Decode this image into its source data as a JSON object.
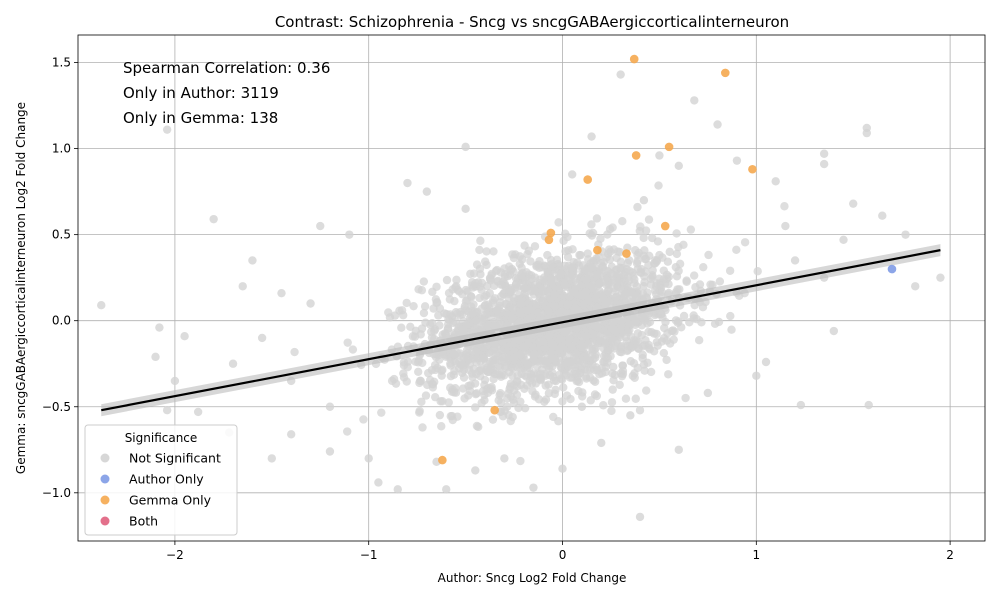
{
  "chart_data": {
    "type": "scatter",
    "title": "Contrast: Schizophrenia - Sncg vs sncgGABAergiccorticalinterneuron",
    "xlabel": "Author: Sncg Log2 Fold Change",
    "ylabel": "Gemma: sncgGABAergiccorticalinterneuron Log2 Fold Change",
    "xlim": [
      -2.5,
      2.18
    ],
    "ylim": [
      -1.28,
      1.66
    ],
    "xticks": [
      -2,
      -1,
      0,
      1,
      2
    ],
    "xtick_labels": [
      "−2",
      "−1",
      "0",
      "1",
      "2"
    ],
    "yticks": [
      -1.0,
      -0.5,
      0.0,
      0.5,
      1.0,
      1.5
    ],
    "ytick_labels": [
      "−1.0",
      "−0.5",
      "0.0",
      "0.5",
      "1.0",
      "1.5"
    ],
    "grid": true,
    "annotations": [
      "Spearman Correlation: 0.36",
      "Only in Author: 3119",
      "Only in Gemma: 138"
    ],
    "regression_line": {
      "x": [
        -2.38,
        1.95
      ],
      "y": [
        -0.52,
        0.41
      ],
      "color": "#000000"
    },
    "legend": {
      "title": "Significance",
      "placement": "lower-left",
      "entries": [
        {
          "label": "Not Significant",
          "color": "#d3d3d3"
        },
        {
          "label": "Author Only",
          "color": "#7f9be6"
        },
        {
          "label": "Gemma Only",
          "color": "#f5a94f"
        },
        {
          "label": "Both",
          "color": "#e0607e"
        }
      ]
    },
    "series": [
      {
        "name": "Not Significant",
        "color": "#d3d3d3",
        "cloud": {
          "count": 2400,
          "x_center": -0.05,
          "x_sd": 0.33,
          "y_center": 0.0,
          "y_sd": 0.2,
          "slope": 0.2
        },
        "points": [
          [
            -2.38,
            0.09
          ],
          [
            -2.04,
            1.11
          ],
          [
            -1.8,
            0.59
          ],
          [
            -2.08,
            -0.04
          ],
          [
            -2.1,
            -0.21
          ],
          [
            -1.95,
            -0.09
          ],
          [
            -2.0,
            -0.35
          ],
          [
            -2.04,
            -0.52
          ],
          [
            -1.88,
            -0.53
          ],
          [
            -1.72,
            -0.65
          ],
          [
            -1.5,
            -0.8
          ],
          [
            -1.4,
            -0.66
          ],
          [
            -1.2,
            -0.76
          ],
          [
            -1.0,
            -0.8
          ],
          [
            -0.85,
            -0.98
          ],
          [
            -0.6,
            -0.98
          ],
          [
            -0.3,
            -0.8
          ],
          [
            -0.15,
            -0.97
          ],
          [
            0.4,
            -1.14
          ],
          [
            0.0,
            -0.86
          ],
          [
            -0.95,
            -0.94
          ],
          [
            0.2,
            -0.71
          ],
          [
            0.6,
            -0.75
          ],
          [
            0.75,
            -0.42
          ],
          [
            0.3,
            1.43
          ],
          [
            0.68,
            1.28
          ],
          [
            0.8,
            1.14
          ],
          [
            0.15,
            1.07
          ],
          [
            -0.5,
            1.01
          ],
          [
            0.5,
            0.96
          ],
          [
            0.6,
            0.9
          ],
          [
            0.9,
            0.93
          ],
          [
            1.35,
            0.97
          ],
          [
            1.35,
            0.91
          ],
          [
            1.57,
            1.12
          ],
          [
            1.57,
            1.09
          ],
          [
            1.5,
            0.68
          ],
          [
            1.65,
            0.61
          ],
          [
            1.77,
            0.5
          ],
          [
            1.82,
            0.2
          ],
          [
            1.95,
            0.25
          ],
          [
            1.58,
            -0.49
          ],
          [
            1.23,
            -0.49
          ],
          [
            1.0,
            -0.32
          ],
          [
            1.05,
            -0.24
          ],
          [
            1.4,
            -0.06
          ],
          [
            1.35,
            0.25
          ],
          [
            1.2,
            0.35
          ],
          [
            1.1,
            0.81
          ],
          [
            -1.6,
            0.35
          ],
          [
            -1.65,
            0.2
          ],
          [
            -1.45,
            0.16
          ],
          [
            -1.55,
            -0.1
          ],
          [
            -1.7,
            -0.25
          ],
          [
            -1.3,
            0.1
          ],
          [
            -1.4,
            -0.35
          ],
          [
            -1.25,
            0.55
          ],
          [
            -1.1,
            0.5
          ],
          [
            -0.8,
            0.8
          ],
          [
            -0.7,
            0.75
          ],
          [
            -0.5,
            0.65
          ],
          [
            0.05,
            0.85
          ],
          [
            0.42,
            0.7
          ],
          [
            1.15,
            0.55
          ],
          [
            1.45,
            0.47
          ],
          [
            -0.65,
            -0.82
          ],
          [
            -0.45,
            -0.87
          ],
          [
            0.1,
            -0.5
          ],
          [
            -1.2,
            -0.5
          ],
          [
            0.35,
            -0.55
          ]
        ]
      },
      {
        "name": "Author Only",
        "color": "#7f9be6",
        "points": [
          [
            1.7,
            0.3
          ]
        ]
      },
      {
        "name": "Gemma Only",
        "color": "#f5a94f",
        "points": [
          [
            0.37,
            1.52
          ],
          [
            0.84,
            1.44
          ],
          [
            0.55,
            1.01
          ],
          [
            0.38,
            0.96
          ],
          [
            0.98,
            0.88
          ],
          [
            0.13,
            0.82
          ],
          [
            0.53,
            0.55
          ],
          [
            -0.06,
            0.51
          ],
          [
            -0.07,
            0.47
          ],
          [
            0.18,
            0.41
          ],
          [
            0.33,
            0.39
          ],
          [
            -0.35,
            -0.52
          ],
          [
            -0.62,
            -0.81
          ]
        ]
      },
      {
        "name": "Both",
        "color": "#e0607e",
        "points": []
      }
    ]
  }
}
